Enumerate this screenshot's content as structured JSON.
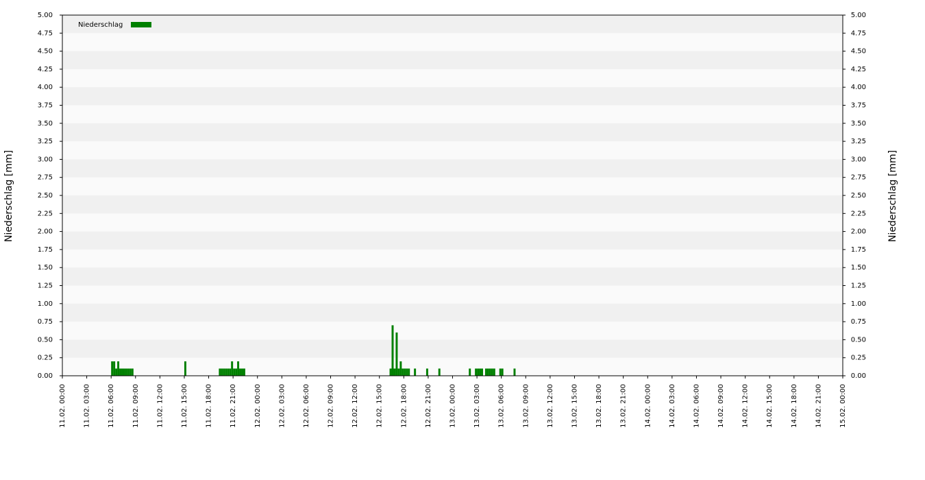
{
  "chart_data": {
    "type": "bar",
    "legend": "Niederschlag",
    "legend_position": "upper left",
    "y_label": "Niederschlag [mm]",
    "y2_label": "Niederschlag [mm]",
    "color": "#008000",
    "bar_width_minutes": 15,
    "x": [
      "11.02. 06:00",
      "11.02. 06:15",
      "11.02. 06:30",
      "11.02. 06:45",
      "11.02. 07:00",
      "11.02. 07:15",
      "11.02. 07:30",
      "11.02. 07:45",
      "11.02. 08:00",
      "11.02. 08:15",
      "11.02. 08:30",
      "11.02. 15:00",
      "11.02. 19:15",
      "11.02. 19:30",
      "11.02. 19:45",
      "11.02. 20:00",
      "11.02. 20:15",
      "11.02. 20:30",
      "11.02. 20:45",
      "11.02. 21:00",
      "11.02. 21:15",
      "11.02. 21:30",
      "11.02. 21:45",
      "11.02. 22:00",
      "11.02. 22:15",
      "12.02. 16:15",
      "12.02. 16:30",
      "12.02. 16:45",
      "12.02. 17:00",
      "12.02. 17:15",
      "12.02. 17:30",
      "12.02. 17:45",
      "12.02. 18:00",
      "12.02. 18:15",
      "12.02. 18:30",
      "12.02. 19:15",
      "12.02. 20:45",
      "12.02. 22:15",
      "13.02. 02:00",
      "13.02. 02:45",
      "13.02. 03:00",
      "13.02. 03:15",
      "13.02. 03:30",
      "13.02. 04:00",
      "13.02. 04:15",
      "13.02. 04:30",
      "13.02. 04:45",
      "13.02. 05:00",
      "13.02. 05:45",
      "13.02. 06:00",
      "13.02. 07:30"
    ],
    "values": [
      0.2,
      0.2,
      0.1,
      0.2,
      0.1,
      0.1,
      0.1,
      0.1,
      0.1,
      0.1,
      0.1,
      0.2,
      0.1,
      0.1,
      0.1,
      0.1,
      0.1,
      0.1,
      0.2,
      0.1,
      0.1,
      0.2,
      0.1,
      0.1,
      0.1,
      0.1,
      0.7,
      0.1,
      0.6,
      0.1,
      0.2,
      0.1,
      0.1,
      0.1,
      0.1,
      0.1,
      0.1,
      0.1,
      0.1,
      0.1,
      0.1,
      0.1,
      0.1,
      0.1,
      0.1,
      0.1,
      0.1,
      0.1,
      0.1,
      0.1,
      0.1
    ],
    "xlim": [
      "11.02. 00:00",
      "15.02. 00:00"
    ],
    "xticks": [
      "11.02. 00:00",
      "11.02. 03:00",
      "11.02. 06:00",
      "11.02. 09:00",
      "11.02. 12:00",
      "11.02. 15:00",
      "11.02. 18:00",
      "11.02. 21:00",
      "12.02. 00:00",
      "12.02. 03:00",
      "12.02. 06:00",
      "12.02. 09:00",
      "12.02. 12:00",
      "12.02. 15:00",
      "12.02. 18:00",
      "12.02. 21:00",
      "13.02. 00:00",
      "13.02. 03:00",
      "13.02. 06:00",
      "13.02. 09:00",
      "13.02. 12:00",
      "13.02. 15:00",
      "13.02. 18:00",
      "13.02. 21:00",
      "14.02. 00:00",
      "14.02. 03:00",
      "14.02. 06:00",
      "14.02. 09:00",
      "14.02. 12:00",
      "14.02. 15:00",
      "14.02. 18:00",
      "14.02. 21:00",
      "15.02. 00:00"
    ],
    "ylim": [
      0,
      5
    ],
    "yticks": [
      {
        "value": 0,
        "label": "0.00"
      },
      {
        "value": 0.25,
        "label": "0.25"
      },
      {
        "value": 0.5,
        "label": "0.50"
      },
      {
        "value": 0.75,
        "label": "0.75"
      },
      {
        "value": 1,
        "label": "1.00"
      },
      {
        "value": 1.25,
        "label": "1.25"
      },
      {
        "value": 1.5,
        "label": "1.50"
      },
      {
        "value": 1.75,
        "label": "1.75"
      },
      {
        "value": 2,
        "label": "2.00"
      },
      {
        "value": 2.25,
        "label": "2.25"
      },
      {
        "value": 2.5,
        "label": "2.50"
      },
      {
        "value": 2.75,
        "label": "2.75"
      },
      {
        "value": 3,
        "label": "3.00"
      },
      {
        "value": 3.25,
        "label": "3.25"
      },
      {
        "value": 3.5,
        "label": "3.50"
      },
      {
        "value": 3.75,
        "label": "3.75"
      },
      {
        "value": 4,
        "label": "4.00"
      },
      {
        "value": 4.25,
        "label": "4.25"
      },
      {
        "value": 4.5,
        "label": "4.50"
      },
      {
        "value": 4.75,
        "label": "4.75"
      },
      {
        "value": 5,
        "label": "5.00"
      }
    ],
    "y2lim": [
      0,
      5
    ],
    "y2ticks": [
      {
        "value": 0,
        "label": "0.00"
      },
      {
        "value": 0.25,
        "label": "0.25"
      },
      {
        "value": 0.5,
        "label": "0.50"
      },
      {
        "value": 0.75,
        "label": "0.75"
      },
      {
        "value": 1,
        "label": "1.00"
      },
      {
        "value": 1.25,
        "label": "1.25"
      },
      {
        "value": 1.5,
        "label": "1.50"
      },
      {
        "value": 1.75,
        "label": "1.75"
      },
      {
        "value": 2,
        "label": "2.00"
      },
      {
        "value": 2.25,
        "label": "2.25"
      },
      {
        "value": 2.5,
        "label": "2.50"
      },
      {
        "value": 2.75,
        "label": "2.75"
      },
      {
        "value": 3,
        "label": "3.00"
      },
      {
        "value": 3.25,
        "label": "3.25"
      },
      {
        "value": 3.5,
        "label": "3.50"
      },
      {
        "value": 3.75,
        "label": "3.75"
      },
      {
        "value": 4,
        "label": "4.00"
      },
      {
        "value": 4.25,
        "label": "4.25"
      },
      {
        "value": 4.5,
        "label": "4.50"
      },
      {
        "value": 4.75,
        "label": "4.75"
      },
      {
        "value": 5,
        "label": "5.00"
      }
    ],
    "grid": true
  }
}
